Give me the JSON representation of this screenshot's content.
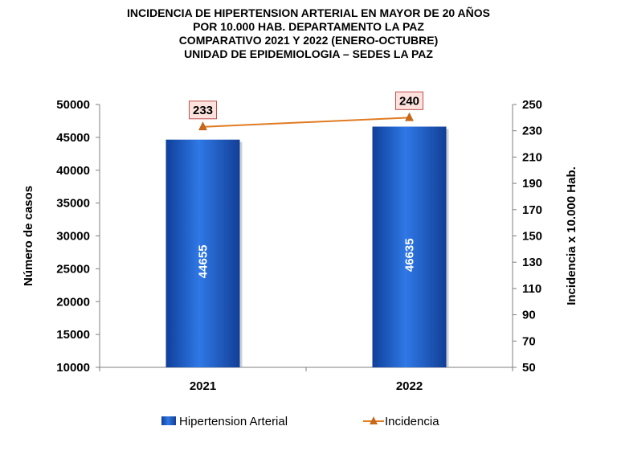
{
  "title_lines": [
    "INCIDENCIA DE HIPERTENSION ARTERIAL EN MAYOR DE 20 AÑOS",
    "POR 10.000 HAB. DEPARTAMENTO LA PAZ",
    "COMPARATIVO 2021 Y 2022 (ENERO-OCTUBRE)",
    "UNIDAD DE EPIDEMIOLOGIA – SEDES LA PAZ"
  ],
  "chart_data": {
    "type": "bar",
    "categories": [
      "2021",
      "2022"
    ],
    "series": [
      {
        "name": "Hipertension Arterial",
        "type": "bar",
        "axis": "left",
        "values": [
          44655,
          46635
        ],
        "labels": [
          "44655",
          "46635"
        ],
        "color": "#1f5fc9"
      },
      {
        "name": "Incidencia",
        "type": "line",
        "axis": "right",
        "values": [
          233,
          240
        ],
        "labels": [
          "233",
          "240"
        ],
        "color": "#e07b22"
      }
    ],
    "ylabel": "Número de casos",
    "y2label": "Incidencia x 10.000 Hab.",
    "ylim": [
      10000,
      50000
    ],
    "yticks": [
      "10000",
      "15000",
      "20000",
      "25000",
      "30000",
      "35000",
      "40000",
      "45000",
      "50000"
    ],
    "y2lim": [
      50,
      250
    ],
    "y2ticks": [
      "50",
      "70",
      "90",
      "110",
      "130",
      "150",
      "170",
      "190",
      "210",
      "230",
      "250"
    ],
    "grid": false,
    "legend_position": "bottom"
  }
}
